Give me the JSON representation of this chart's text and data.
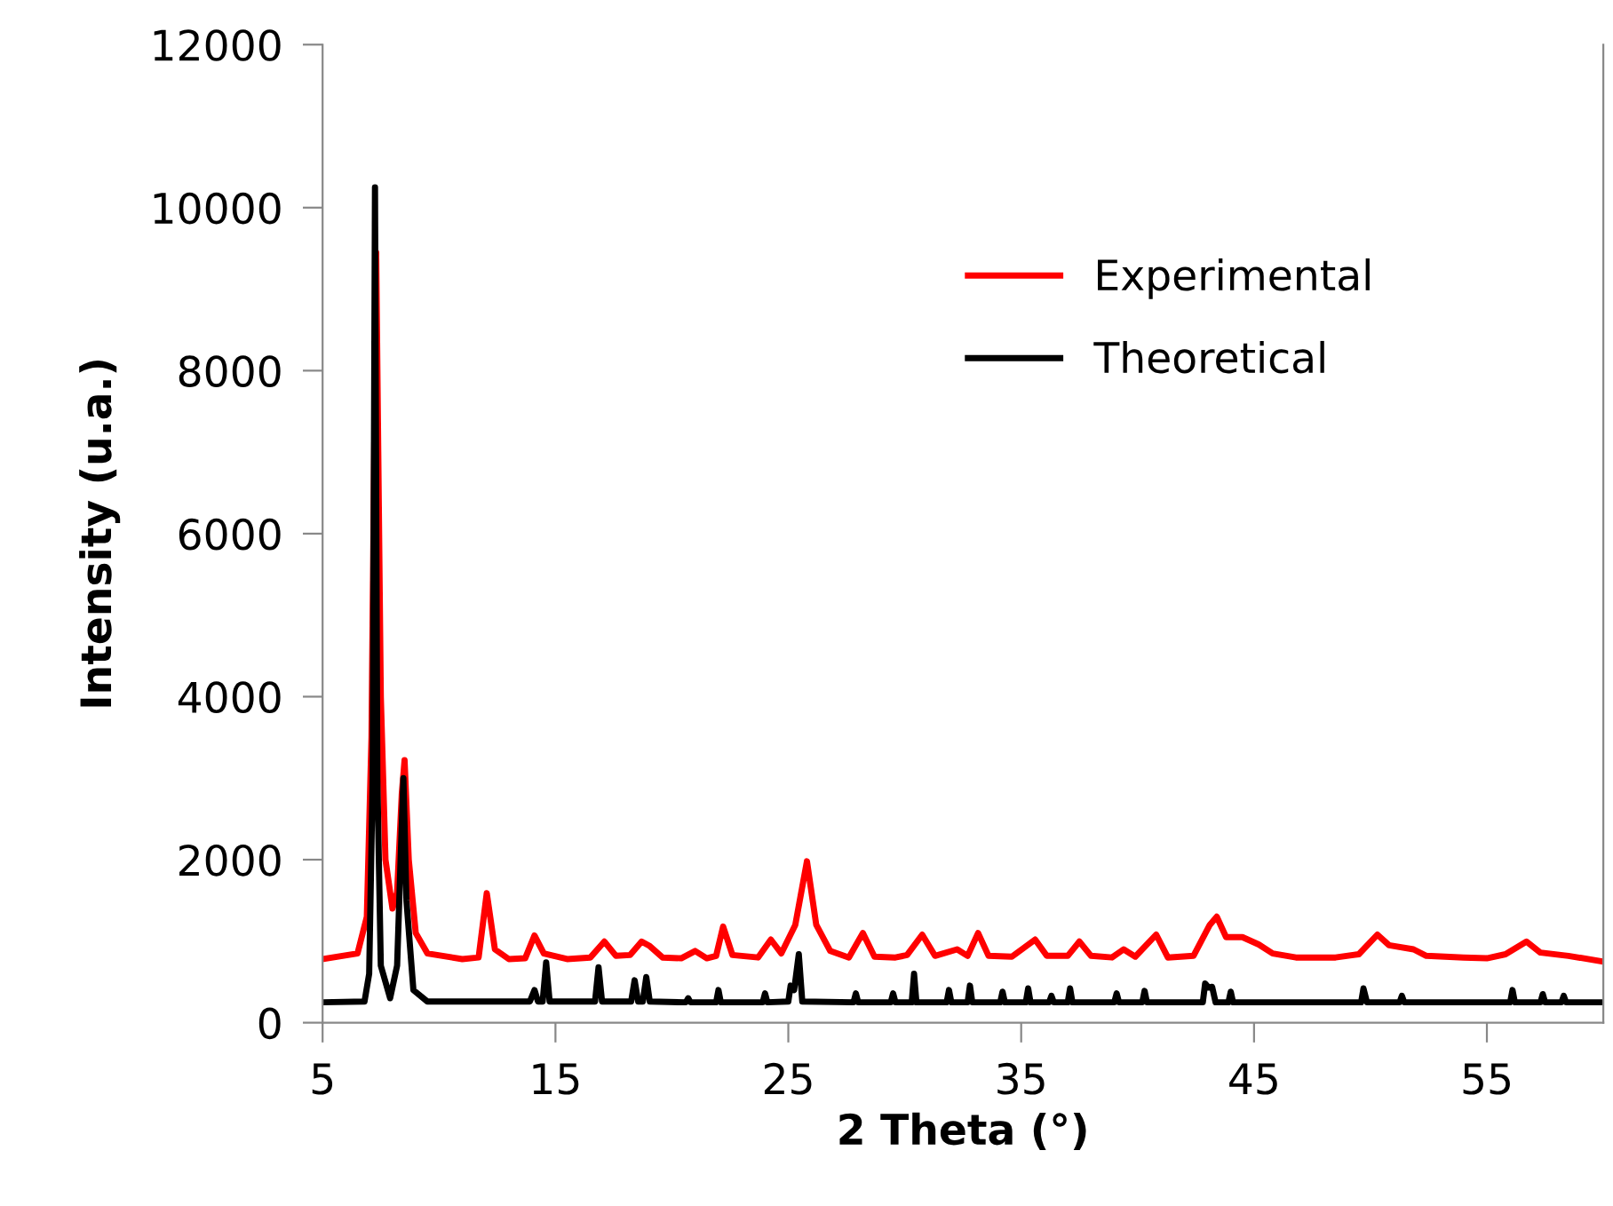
{
  "chart_data": {
    "type": "line",
    "xlabel": "2 Theta (°)",
    "ylabel": "Intensity (u.a.)",
    "xlim": [
      5,
      60
    ],
    "xticks": [
      5,
      15,
      25,
      35,
      45,
      55
    ],
    "ylim": [
      0,
      12000
    ],
    "yticks": [
      0,
      2000,
      4000,
      6000,
      8000,
      10000,
      12000
    ],
    "grid": false,
    "legend": "top right",
    "marker": "none",
    "line_style": "solid",
    "series": [
      {
        "name": "Experimental",
        "color": "#ff0000",
        "x": [
          5,
          6.5,
          6.9,
          7.1,
          7.3,
          7.5,
          7.7,
          8.0,
          8.2,
          8.4,
          8.52,
          8.7,
          9.0,
          9.5,
          11.0,
          11.7,
          12.05,
          12.4,
          13.0,
          13.7,
          14.1,
          14.5,
          15.5,
          16.5,
          17.1,
          17.6,
          18.2,
          18.7,
          19.05,
          19.6,
          20.4,
          21.0,
          21.5,
          21.9,
          22.2,
          22.6,
          23.7,
          24.25,
          24.7,
          25.3,
          25.8,
          26.2,
          26.8,
          27.6,
          28.2,
          28.7,
          29.6,
          30.1,
          30.75,
          31.3,
          32.25,
          32.7,
          33.15,
          33.6,
          34.6,
          35.6,
          36.1,
          37.0,
          37.5,
          38.0,
          38.9,
          39.4,
          39.9,
          40.8,
          41.3,
          42.4,
          43.1,
          43.4,
          43.8,
          44.5,
          45.2,
          45.8,
          46.8,
          48.5,
          49.5,
          50.3,
          50.8,
          51.85,
          52.4,
          54.0,
          55.0,
          55.8,
          56.7,
          57.3,
          58.5,
          60
        ],
        "values": [
          780,
          850,
          1300,
          3500,
          9450,
          4000,
          2000,
          1400,
          1600,
          2800,
          3220,
          2000,
          1100,
          850,
          780,
          800,
          1590,
          900,
          780,
          790,
          1070,
          850,
          780,
          800,
          995,
          820,
          830,
          995,
          940,
          800,
          790,
          880,
          790,
          820,
          1180,
          830,
          800,
          1020,
          850,
          1200,
          1980,
          1200,
          880,
          800,
          1100,
          810,
          800,
          830,
          1080,
          820,
          900,
          820,
          1100,
          820,
          810,
          1020,
          820,
          820,
          995,
          820,
          800,
          900,
          810,
          1080,
          800,
          820,
          1200,
          1300,
          1050,
          1050,
          960,
          850,
          800,
          800,
          840,
          1080,
          950,
          900,
          820,
          800,
          790,
          840,
          995,
          860,
          820,
          750
        ]
      },
      {
        "name": "Theoretical",
        "color": "#000000",
        "x": [
          5,
          6.8,
          7.0,
          7.15,
          7.25,
          7.35,
          7.5,
          7.9,
          8.2,
          8.35,
          8.47,
          8.6,
          8.9,
          9.5,
          13.9,
          14.1,
          14.25,
          14.45,
          14.6,
          14.75,
          16.7,
          16.85,
          17.0,
          18.25,
          18.4,
          18.55,
          18.75,
          18.9,
          19.05,
          20.6,
          20.7,
          20.8,
          21.9,
          22.0,
          22.1,
          23.9,
          24.0,
          24.1,
          25.0,
          25.1,
          25.25,
          25.45,
          25.6,
          27.8,
          27.9,
          28.0,
          29.4,
          29.5,
          29.6,
          30.3,
          30.4,
          30.5,
          31.8,
          31.9,
          32.0,
          32.7,
          32.8,
          32.9,
          34.1,
          34.2,
          34.3,
          35.2,
          35.3,
          35.4,
          36.2,
          36.3,
          36.4,
          37.0,
          37.1,
          37.2,
          39.0,
          39.1,
          39.2,
          40.2,
          40.3,
          40.4,
          42.8,
          42.9,
          43.05,
          43.2,
          43.35,
          43.9,
          44.0,
          44.1,
          49.6,
          49.7,
          49.85,
          51.25,
          51.35,
          51.45,
          56.0,
          56.1,
          56.2,
          57.3,
          57.4,
          57.5,
          58.2,
          58.3,
          58.4,
          60
        ],
        "values": [
          250,
          260,
          600,
          3000,
          10250,
          3000,
          700,
          300,
          700,
          2000,
          3000,
          1500,
          400,
          260,
          260,
          400,
          260,
          260,
          740,
          260,
          260,
          680,
          260,
          260,
          520,
          260,
          260,
          560,
          260,
          250,
          300,
          250,
          250,
          400,
          250,
          250,
          360,
          250,
          260,
          455,
          400,
          840,
          260,
          250,
          360,
          250,
          250,
          360,
          250,
          250,
          600,
          250,
          250,
          400,
          250,
          250,
          455,
          250,
          250,
          380,
          250,
          250,
          420,
          250,
          250,
          330,
          250,
          250,
          420,
          250,
          250,
          360,
          250,
          250,
          390,
          250,
          250,
          480,
          430,
          440,
          250,
          250,
          380,
          250,
          250,
          420,
          250,
          250,
          330,
          250,
          250,
          400,
          250,
          250,
          350,
          250,
          250,
          330,
          250,
          250
        ]
      }
    ]
  }
}
